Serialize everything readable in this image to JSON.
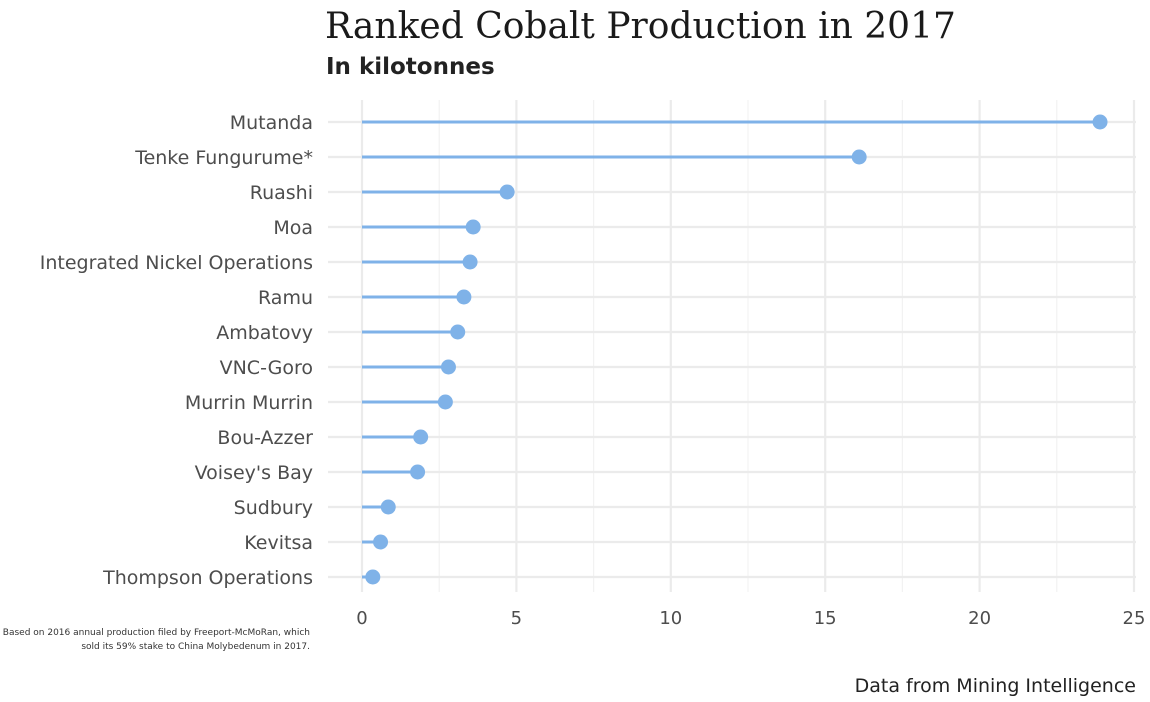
{
  "chart_data": {
    "type": "lollipop",
    "title": "Ranked Cobalt Production in 2017",
    "subtitle": "In kilotonnes",
    "caption": "Data from Mining Intelligence",
    "footnote": "* Based on 2016 annual production filed by Freeport-McMoRan, which sold its 59% stake to China Molybedenum in 2017.",
    "xlabel": "",
    "ylabel": "",
    "xlim": [
      0,
      25
    ],
    "x_ticks": [
      0,
      5,
      10,
      15,
      20,
      25
    ],
    "grid": true,
    "color": "#7fb2e8",
    "categories": [
      "Mutanda",
      "Tenke Fungurume*",
      "Ruashi",
      "Moa",
      "Integrated Nickel Operations",
      "Ramu",
      "Ambatovy",
      "VNC-Goro",
      "Murrin Murrin",
      "Bou-Azzer",
      "Voisey's Bay",
      "Sudbury",
      "Kevitsa",
      "Thompson Operations"
    ],
    "values": [
      23.9,
      16.1,
      4.7,
      3.6,
      3.5,
      3.3,
      3.1,
      2.8,
      2.7,
      1.9,
      1.8,
      0.85,
      0.6,
      0.35
    ]
  }
}
